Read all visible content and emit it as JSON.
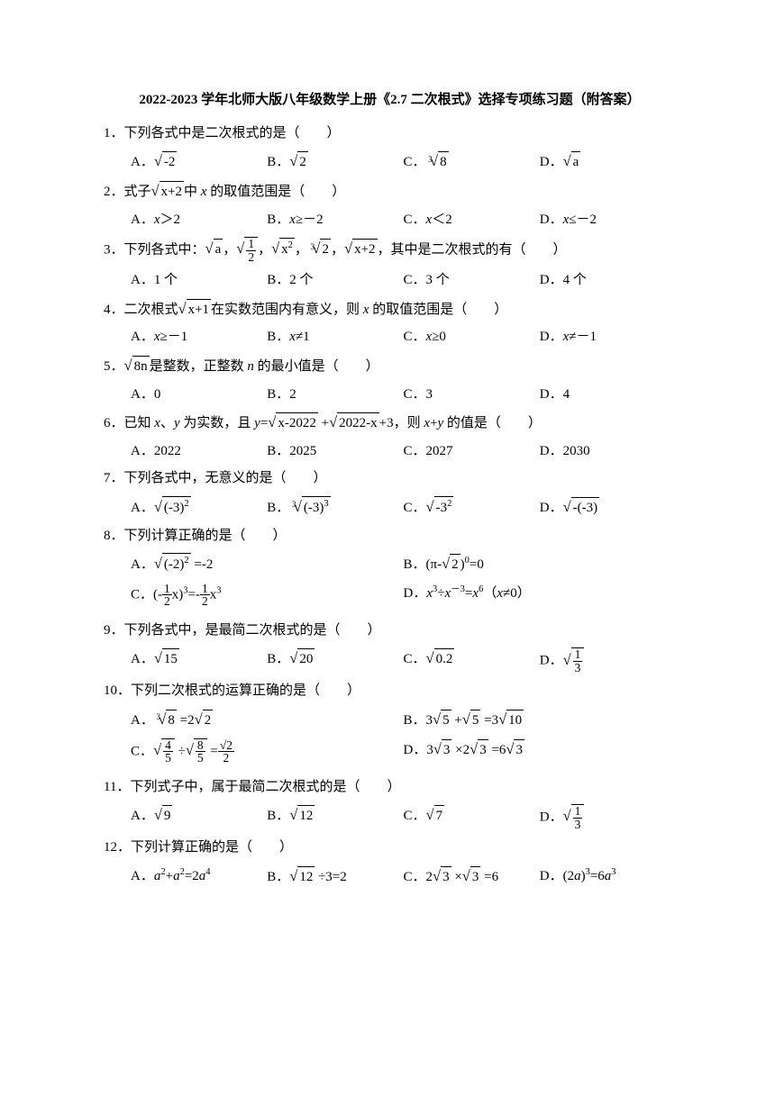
{
  "title": "2022-2023 学年北师大版八年级数学上册《2.7 二次根式》选择专项练习题（附答案）",
  "questions": [
    {
      "num": "1",
      "text": "．下列各式中是二次根式的是（　　）",
      "opts": [
        "A．√(-2)",
        "B．√2",
        "C．∛8",
        "D．√a"
      ],
      "layout": 4
    },
    {
      "num": "2",
      "text": "．式子√(x+2)中 x 的取值范围是（　　）",
      "opts": [
        "A．x＞2",
        "B．x≥－2",
        "C．x＜2",
        "D．x≤－2"
      ],
      "layout": 4
    },
    {
      "num": "3",
      "text": "．下列各式中：√a，√(1/2)，√(x²)，∛2，√(x+2)，其中是二次根式的有（　　）",
      "opts": [
        "A．1 个",
        "B．2 个",
        "C．3 个",
        "D．4 个"
      ],
      "layout": 4
    },
    {
      "num": "4",
      "text": "．二次根式√(x+1)在实数范围内有意义，则 x 的取值范围是（　　）",
      "opts": [
        "A．x≥－1",
        "B．x≠1",
        "C．x≥0",
        "D．x≠－1"
      ],
      "layout": 4
    },
    {
      "num": "5",
      "text": "．√(8n)是整数，正整数 n 的最小值是（　　）",
      "opts": [
        "A．0",
        "B．2",
        "C．3",
        "D．4"
      ],
      "layout": 4
    },
    {
      "num": "6",
      "text": "．已知 x、y 为实数，且 y=√(x-2022) +√(2022-x)+3，则 x+y 的值是（　　）",
      "opts": [
        "A．2022",
        "B．2025",
        "C．2027",
        "D．2030"
      ],
      "layout": 4
    },
    {
      "num": "7",
      "text": "．下列各式中，无意义的是（　　）",
      "opts": [
        "A．√((-3)²)",
        "B．∛((-3)³)",
        "C．√(-3²)",
        "D．√(-(-3))"
      ],
      "layout": 4
    },
    {
      "num": "8",
      "text": "．下列计算正确的是（　　）",
      "opts": [
        "A．√((-2)²) =-2",
        "B．(π-√2)⁰=0",
        "C．(-½x)³=-½x³",
        "D．x³÷x⁻³=x⁶（x≠0）"
      ],
      "layout": 2
    },
    {
      "num": "9",
      "text": "．下列各式中，是最简二次根式的是（　　）",
      "opts": [
        "A．√15",
        "B．√20",
        "C．√0.2",
        "D．√(1/3)"
      ],
      "layout": 4
    },
    {
      "num": "10",
      "text": "．下列二次根式的运算正确的是（　　）",
      "opts": [
        "A．∛8 =2√2",
        "B．3√5 +√5 =3√10",
        "C．√(4/5) ÷√(8/5) =√2/2",
        "D．3√3 ×2√3 =6√3"
      ],
      "layout": 2
    },
    {
      "num": "11",
      "text": "．下列式子中，属于最简二次根式的是（　　）",
      "opts": [
        "A．√9",
        "B．√12",
        "C．√7",
        "D．√(1/3)"
      ],
      "layout": 4
    },
    {
      "num": "12",
      "text": "．下列计算正确的是（　　）",
      "opts": [
        "A．a²+a²=2a⁴",
        "B．√12 ÷3=2",
        "C．2√3 ×√3 =6",
        "D．(2a)³=6a³"
      ],
      "layout": 4
    }
  ]
}
